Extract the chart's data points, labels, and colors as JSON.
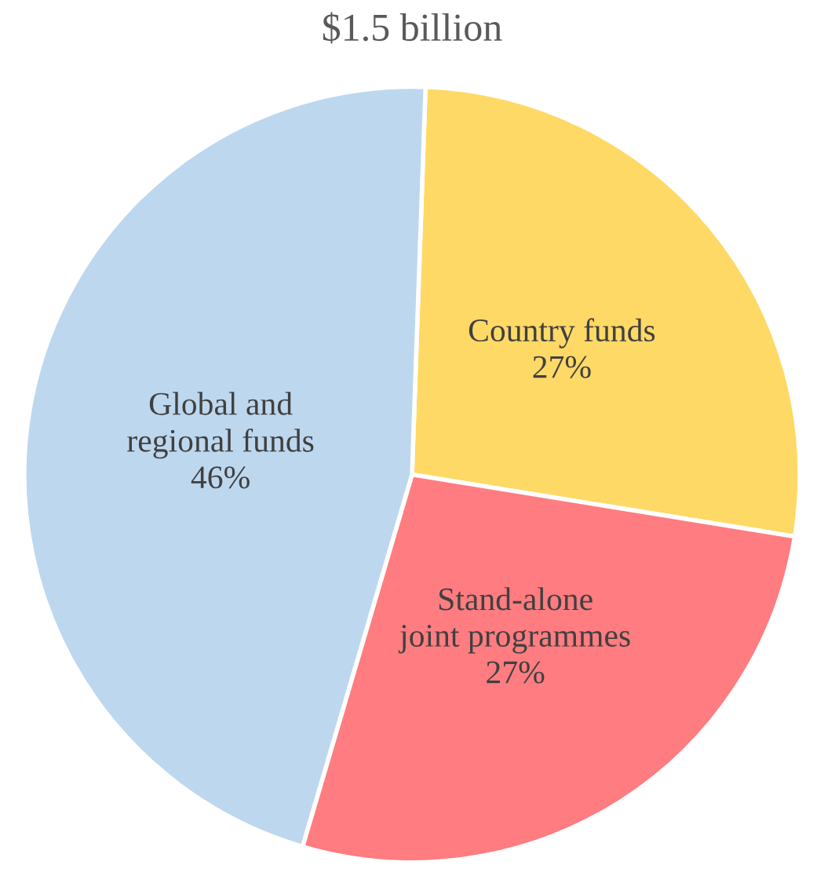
{
  "chart_data": {
    "type": "pie",
    "title": "$1.5 billion",
    "categories": [
      "Country funds",
      "Stand-alone\njoint programmes",
      "Global and\nregional funds"
    ],
    "values": [
      27,
      27,
      46
    ],
    "value_labels": [
      "27%",
      "27%",
      "46%"
    ],
    "colors": [
      "#ffd966",
      "#ff7c80",
      "#bdd7ee"
    ]
  }
}
